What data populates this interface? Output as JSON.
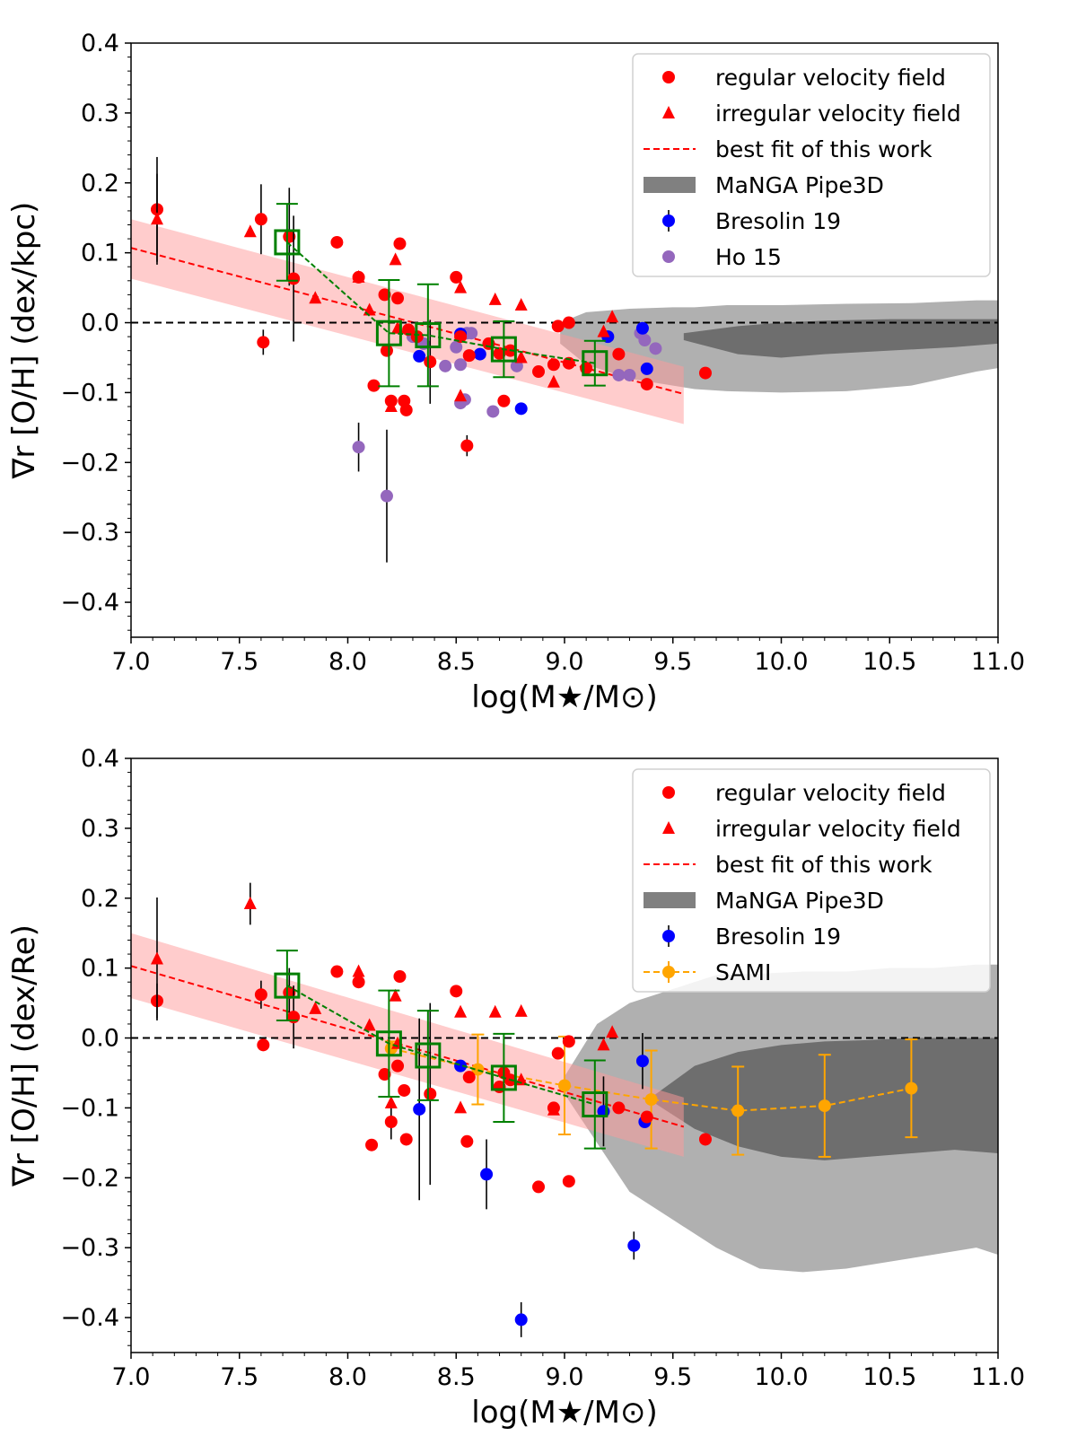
{
  "chart_data": [
    {
      "type": "scatter",
      "panel": "top",
      "xlabel": "log(M★/M⊙)",
      "ylabel": "∇r [O/H] (dex/kpc)",
      "xlim": [
        7.0,
        11.0
      ],
      "ylim": [
        -0.45,
        0.4
      ],
      "xticks": [
        "7.0",
        "7.5",
        "8.0",
        "8.5",
        "9.0",
        "9.5",
        "10.0",
        "10.5",
        "11.0"
      ],
      "yticks": [
        "−0.4",
        "−0.3",
        "−0.2",
        "−0.1",
        "0.0",
        "0.1",
        "0.2",
        "0.3",
        "0.4"
      ],
      "legend": [
        "regular velocity field",
        "irregular velocity field",
        "best fit of this work",
        "MaNGA Pipe3D",
        "Bresolin 19",
        "Ho 15"
      ],
      "colors": {
        "regular": "#ff0000",
        "bresolin": "#0000ff",
        "ho": "#9467bd",
        "binned": "#008000",
        "fit": "#ff0000"
      },
      "fit_line": {
        "x": [
          7.0,
          9.55
        ],
        "y": [
          0.107,
          -0.102
        ]
      },
      "fit_band": {
        "x": [
          7.0,
          9.55
        ],
        "upper": [
          0.148,
          -0.063
        ],
        "lower": [
          0.063,
          -0.145
        ]
      },
      "manga_outer": {
        "x": [
          8.98,
          9.1,
          9.3,
          9.5,
          9.6,
          9.75,
          10.0,
          10.3,
          10.6,
          10.9,
          11.0
        ],
        "upper": [
          0.0,
          0.015,
          0.02,
          0.022,
          0.022,
          0.025,
          0.025,
          0.027,
          0.028,
          0.032,
          0.032
        ],
        "lower": [
          -0.03,
          -0.06,
          -0.08,
          -0.09,
          -0.095,
          -0.098,
          -0.1,
          -0.098,
          -0.09,
          -0.07,
          -0.065
        ]
      },
      "manga_inner": {
        "x": [
          9.55,
          9.8,
          10.0,
          10.2,
          10.5,
          10.8,
          11.0
        ],
        "upper": [
          -0.015,
          -0.005,
          0.0,
          0.003,
          0.005,
          0.005,
          0.005
        ],
        "lower": [
          -0.025,
          -0.045,
          -0.05,
          -0.045,
          -0.04,
          -0.035,
          -0.03
        ]
      },
      "regular": [
        {
          "x": 7.12,
          "y": 0.162,
          "err": 0.075
        },
        {
          "x": 7.6,
          "y": 0.148,
          "err": 0.05
        },
        {
          "x": 7.61,
          "y": -0.028,
          "err": 0.018
        },
        {
          "x": 7.73,
          "y": 0.123,
          "err": 0.07
        },
        {
          "x": 7.75,
          "y": 0.063,
          "err": 0.09
        },
        {
          "x": 7.95,
          "y": 0.115
        },
        {
          "x": 8.05,
          "y": 0.065
        },
        {
          "x": 8.12,
          "y": -0.09
        },
        {
          "x": 8.17,
          "y": 0.04
        },
        {
          "x": 8.18,
          "y": -0.04
        },
        {
          "x": 8.2,
          "y": -0.112
        },
        {
          "x": 8.23,
          "y": 0.035
        },
        {
          "x": 8.24,
          "y": 0.113
        },
        {
          "x": 8.26,
          "y": -0.112
        },
        {
          "x": 8.27,
          "y": -0.125
        },
        {
          "x": 8.28,
          "y": -0.01
        },
        {
          "x": 8.32,
          "y": -0.02
        },
        {
          "x": 8.38,
          "y": -0.056,
          "err": 0.06
        },
        {
          "x": 8.5,
          "y": 0.065
        },
        {
          "x": 8.52,
          "y": -0.02
        },
        {
          "x": 8.55,
          "y": -0.176,
          "err": 0.015
        },
        {
          "x": 8.56,
          "y": -0.047
        },
        {
          "x": 8.65,
          "y": -0.03
        },
        {
          "x": 8.7,
          "y": -0.044
        },
        {
          "x": 8.72,
          "y": -0.112
        },
        {
          "x": 8.75,
          "y": -0.04
        },
        {
          "x": 8.88,
          "y": -0.07
        },
        {
          "x": 8.95,
          "y": -0.06
        },
        {
          "x": 8.97,
          "y": -0.005
        },
        {
          "x": 9.02,
          "y": 0.0
        },
        {
          "x": 9.02,
          "y": -0.058
        },
        {
          "x": 9.1,
          "y": -0.065
        },
        {
          "x": 9.25,
          "y": -0.045
        },
        {
          "x": 9.38,
          "y": -0.088
        },
        {
          "x": 9.65,
          "y": -0.072
        }
      ],
      "irregular": [
        {
          "x": 7.12,
          "y": 0.148,
          "err": 0.065
        },
        {
          "x": 7.55,
          "y": 0.13
        },
        {
          "x": 7.85,
          "y": 0.035
        },
        {
          "x": 8.05,
          "y": 0.065
        },
        {
          "x": 8.1,
          "y": 0.018
        },
        {
          "x": 8.2,
          "y": -0.12
        },
        {
          "x": 8.22,
          "y": 0.09
        },
        {
          "x": 8.23,
          "y": -0.008
        },
        {
          "x": 8.52,
          "y": 0.05
        },
        {
          "x": 8.52,
          "y": -0.105
        },
        {
          "x": 8.68,
          "y": 0.033
        },
        {
          "x": 8.8,
          "y": -0.05
        },
        {
          "x": 8.8,
          "y": 0.025
        },
        {
          "x": 8.95,
          "y": -0.085
        },
        {
          "x": 9.18,
          "y": -0.013
        },
        {
          "x": 9.22,
          "y": 0.008
        }
      ],
      "bresolin": [
        {
          "x": 8.33,
          "y": -0.048
        },
        {
          "x": 8.52,
          "y": -0.016
        },
        {
          "x": 8.61,
          "y": -0.045
        },
        {
          "x": 8.8,
          "y": -0.123
        },
        {
          "x": 9.2,
          "y": -0.02
        },
        {
          "x": 9.36,
          "y": -0.008
        },
        {
          "x": 9.38,
          "y": -0.066
        }
      ],
      "ho": [
        {
          "x": 8.05,
          "y": -0.178,
          "err": 0.035
        },
        {
          "x": 8.18,
          "y": -0.248,
          "err": 0.095
        },
        {
          "x": 8.3,
          "y": -0.02
        },
        {
          "x": 8.35,
          "y": -0.03
        },
        {
          "x": 8.45,
          "y": -0.062
        },
        {
          "x": 8.5,
          "y": -0.035
        },
        {
          "x": 8.52,
          "y": -0.06
        },
        {
          "x": 8.55,
          "y": -0.015
        },
        {
          "x": 8.57,
          "y": -0.015
        },
        {
          "x": 8.52,
          "y": -0.115
        },
        {
          "x": 8.54,
          "y": -0.11
        },
        {
          "x": 8.67,
          "y": -0.127
        },
        {
          "x": 8.78,
          "y": -0.062
        },
        {
          "x": 9.2,
          "y": -0.02
        },
        {
          "x": 9.25,
          "y": -0.075
        },
        {
          "x": 9.3,
          "y": -0.075
        },
        {
          "x": 9.35,
          "y": -0.015
        },
        {
          "x": 9.37,
          "y": -0.025
        },
        {
          "x": 9.42,
          "y": -0.037
        }
      ],
      "binned": [
        {
          "x": 7.72,
          "y": 0.115,
          "err": 0.055
        },
        {
          "x": 8.19,
          "y": -0.015,
          "err": 0.076
        },
        {
          "x": 8.37,
          "y": -0.018,
          "err": 0.073
        },
        {
          "x": 8.72,
          "y": -0.038,
          "err": 0.04
        },
        {
          "x": 9.14,
          "y": -0.058,
          "err": 0.032
        }
      ]
    },
    {
      "type": "scatter",
      "panel": "bottom",
      "xlabel": "log(M★/M⊙)",
      "ylabel": "∇r [O/H] (dex/Re)",
      "xlim": [
        7.0,
        11.0
      ],
      "ylim": [
        -0.45,
        0.4
      ],
      "xticks": [
        "7.0",
        "7.5",
        "8.0",
        "8.5",
        "9.0",
        "9.5",
        "10.0",
        "10.5",
        "11.0"
      ],
      "yticks": [
        "−0.4",
        "−0.3",
        "−0.2",
        "−0.1",
        "0.0",
        "0.1",
        "0.2",
        "0.3",
        "0.4"
      ],
      "legend": [
        "regular velocity field",
        "irregular velocity field",
        "best fit of this work",
        "MaNGA Pipe3D",
        "Bresolin 19",
        "SAMI"
      ],
      "colors": {
        "regular": "#ff0000",
        "bresolin": "#0000ff",
        "sami": "#ffa500",
        "binned": "#008000",
        "fit": "#ff0000"
      },
      "fit_line": {
        "x": [
          7.0,
          9.55
        ],
        "y": [
          0.103,
          -0.127
        ]
      },
      "fit_band": {
        "x": [
          7.0,
          9.55
        ],
        "upper": [
          0.15,
          -0.085
        ],
        "lower": [
          0.057,
          -0.17
        ]
      },
      "manga_outer": {
        "x": [
          9.0,
          9.15,
          9.3,
          9.5,
          9.7,
          9.9,
          10.1,
          10.3,
          10.5,
          10.7,
          10.9,
          11.0
        ],
        "upper": [
          -0.055,
          0.02,
          0.05,
          0.07,
          0.09,
          0.092,
          0.095,
          0.095,
          0.1,
          0.1,
          0.105,
          0.105
        ],
        "lower": [
          -0.08,
          -0.15,
          -0.22,
          -0.26,
          -0.3,
          -0.33,
          -0.335,
          -0.33,
          -0.32,
          -0.31,
          -0.3,
          -0.31
        ]
      },
      "manga_inner": {
        "x": [
          9.4,
          9.6,
          9.8,
          10.0,
          10.2,
          10.4,
          10.6,
          10.8,
          11.0
        ],
        "upper": [
          -0.085,
          -0.04,
          -0.02,
          -0.01,
          -0.005,
          -0.003,
          0.0,
          0.0,
          0.0
        ],
        "lower": [
          -0.09,
          -0.13,
          -0.155,
          -0.17,
          -0.175,
          -0.17,
          -0.165,
          -0.16,
          -0.165
        ]
      },
      "regular": [
        {
          "x": 7.12,
          "y": 0.053,
          "err": 0.025
        },
        {
          "x": 7.6,
          "y": 0.062,
          "err": 0.02
        },
        {
          "x": 7.61,
          "y": -0.01
        },
        {
          "x": 7.73,
          "y": 0.065,
          "err": 0.035
        },
        {
          "x": 7.75,
          "y": 0.03,
          "err": 0.045
        },
        {
          "x": 7.95,
          "y": 0.095
        },
        {
          "x": 8.05,
          "y": 0.08
        },
        {
          "x": 8.11,
          "y": -0.153
        },
        {
          "x": 8.17,
          "y": -0.052
        },
        {
          "x": 8.2,
          "y": -0.12,
          "err": 0.025
        },
        {
          "x": 8.23,
          "y": -0.04
        },
        {
          "x": 8.24,
          "y": 0.088
        },
        {
          "x": 8.26,
          "y": -0.075
        },
        {
          "x": 8.27,
          "y": -0.145
        },
        {
          "x": 8.38,
          "y": -0.08,
          "err": 0.13
        },
        {
          "x": 8.5,
          "y": 0.067
        },
        {
          "x": 8.55,
          "y": -0.148
        },
        {
          "x": 8.56,
          "y": -0.056
        },
        {
          "x": 8.7,
          "y": -0.07
        },
        {
          "x": 8.72,
          "y": -0.05
        },
        {
          "x": 8.75,
          "y": -0.06
        },
        {
          "x": 8.88,
          "y": -0.213
        },
        {
          "x": 8.95,
          "y": -0.1
        },
        {
          "x": 8.97,
          "y": -0.022
        },
        {
          "x": 9.02,
          "y": -0.205
        },
        {
          "x": 9.02,
          "y": -0.005
        },
        {
          "x": 9.25,
          "y": -0.1
        },
        {
          "x": 9.38,
          "y": -0.113
        },
        {
          "x": 9.65,
          "y": -0.145
        }
      ],
      "irregular": [
        {
          "x": 7.12,
          "y": 0.113,
          "err": 0.088
        },
        {
          "x": 7.55,
          "y": 0.192,
          "err": 0.03
        },
        {
          "x": 7.85,
          "y": 0.042
        },
        {
          "x": 8.05,
          "y": 0.095
        },
        {
          "x": 8.1,
          "y": 0.018
        },
        {
          "x": 8.2,
          "y": -0.093
        },
        {
          "x": 8.22,
          "y": 0.06
        },
        {
          "x": 8.23,
          "y": -0.008
        },
        {
          "x": 8.52,
          "y": 0.037
        },
        {
          "x": 8.52,
          "y": -0.1
        },
        {
          "x": 8.68,
          "y": 0.037
        },
        {
          "x": 8.8,
          "y": -0.06
        },
        {
          "x": 8.8,
          "y": 0.038
        },
        {
          "x": 8.95,
          "y": -0.103
        },
        {
          "x": 9.18,
          "y": -0.01
        },
        {
          "x": 9.22,
          "y": 0.008
        }
      ],
      "bresolin": [
        {
          "x": 8.33,
          "y": -0.102,
          "err": 0.13
        },
        {
          "x": 8.52,
          "y": -0.04
        },
        {
          "x": 8.64,
          "y": -0.195,
          "err": 0.05
        },
        {
          "x": 8.8,
          "y": -0.403,
          "err": 0.025
        },
        {
          "x": 9.18,
          "y": -0.105,
          "err": 0.05
        },
        {
          "x": 9.32,
          "y": -0.297,
          "err": 0.02
        },
        {
          "x": 9.36,
          "y": -0.033,
          "err": 0.04
        },
        {
          "x": 9.37,
          "y": -0.12
        }
      ],
      "sami": [
        {
          "x": 8.2,
          "y": -0.015,
          "err": 0.01
        },
        {
          "x": 8.6,
          "y": -0.045,
          "err": 0.05
        },
        {
          "x": 9.0,
          "y": -0.068,
          "err": 0.07
        },
        {
          "x": 9.4,
          "y": -0.088,
          "err": 0.07
        },
        {
          "x": 9.8,
          "y": -0.104,
          "err": 0.063
        },
        {
          "x": 10.2,
          "y": -0.097,
          "err": 0.073
        },
        {
          "x": 10.6,
          "y": -0.072,
          "err": 0.07
        }
      ],
      "binned": [
        {
          "x": 7.72,
          "y": 0.075,
          "err": 0.05
        },
        {
          "x": 8.19,
          "y": -0.008,
          "err": 0.076
        },
        {
          "x": 8.37,
          "y": -0.025,
          "err": 0.064
        },
        {
          "x": 8.72,
          "y": -0.057,
          "err": 0.063
        },
        {
          "x": 9.14,
          "y": -0.095,
          "err": 0.063
        }
      ]
    }
  ]
}
